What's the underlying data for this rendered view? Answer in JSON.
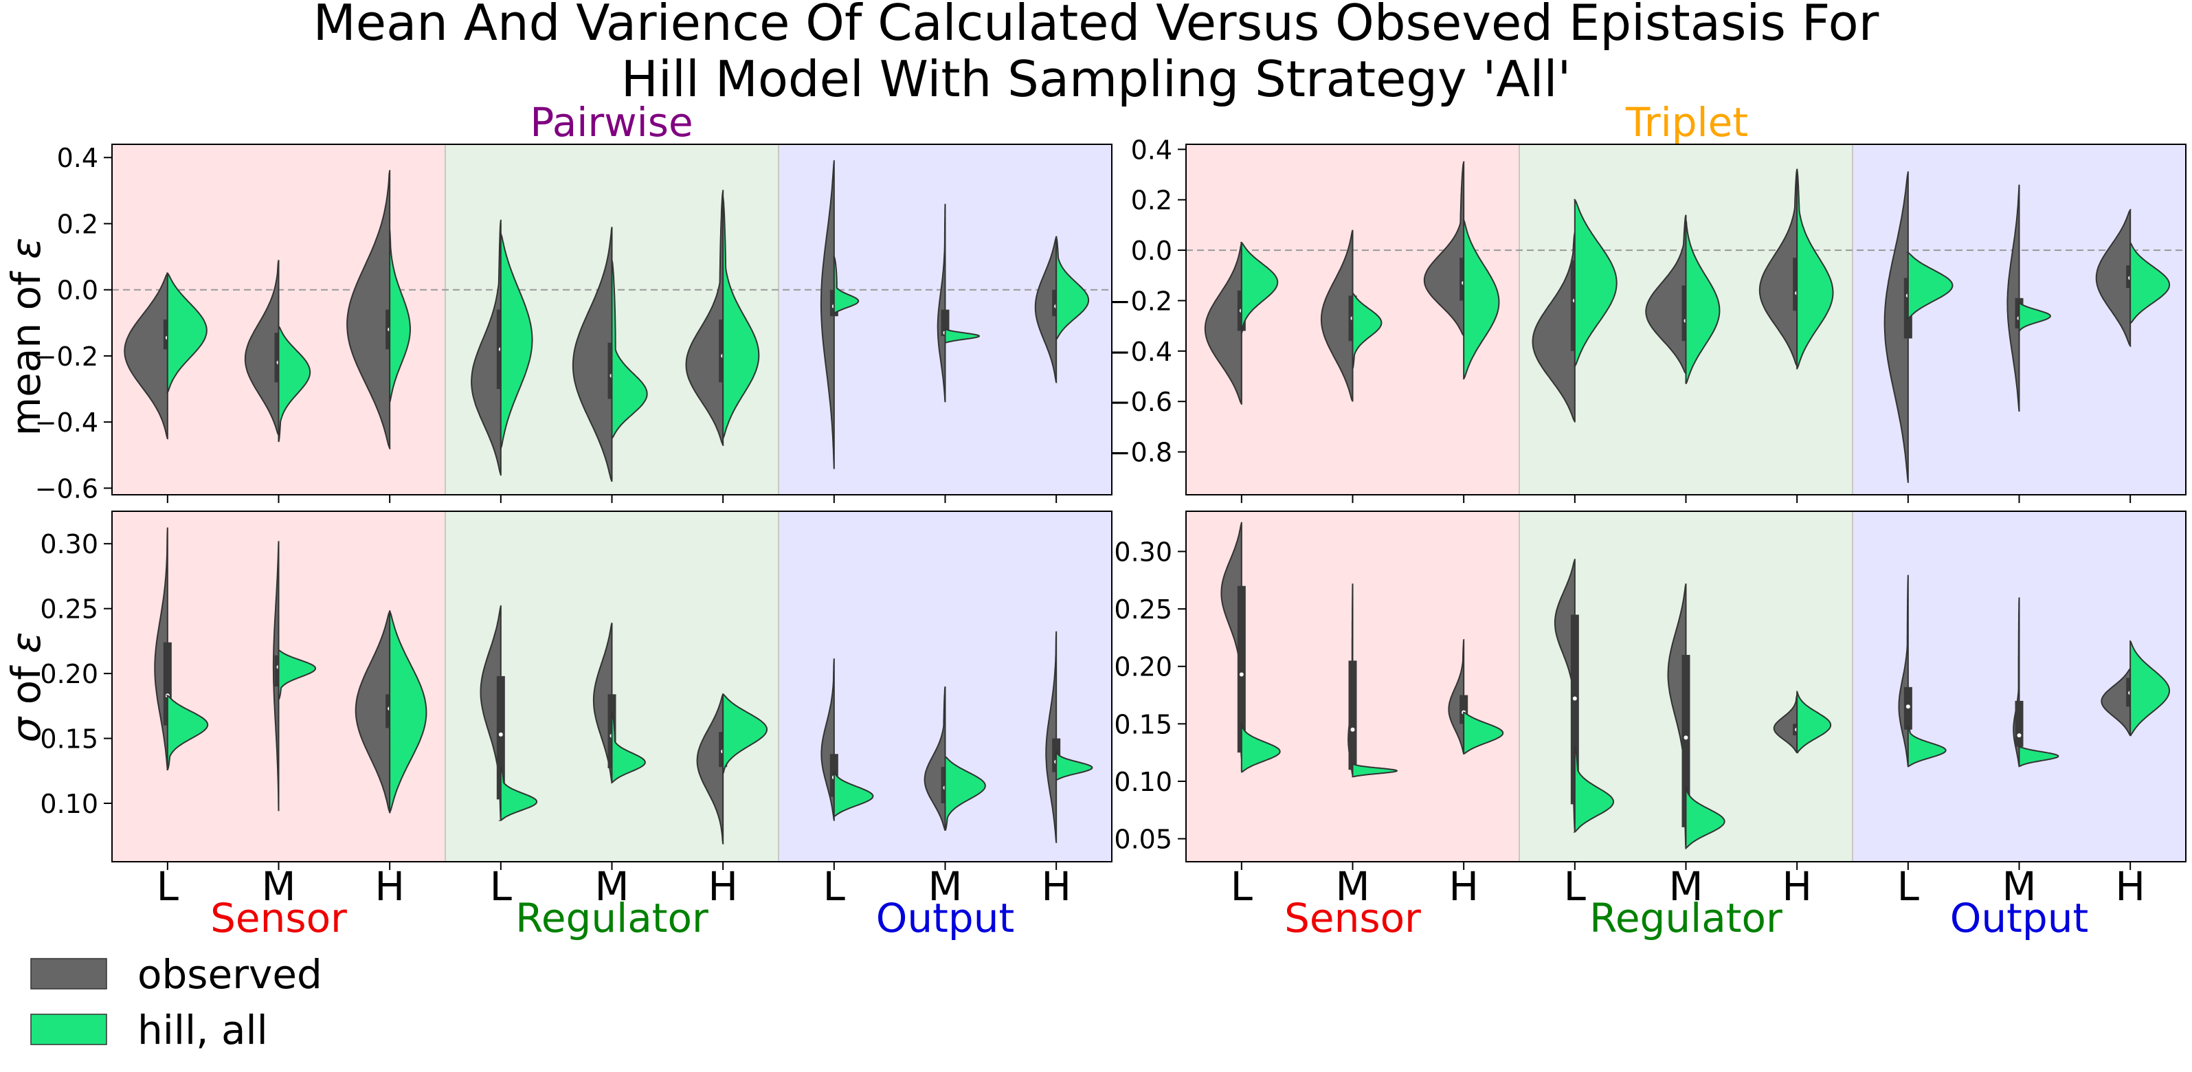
{
  "figure": {
    "title_line1": "Mean And Varience Of Calculated Versus Obseved Epistasis For",
    "title_line2": "Hill Model With Sampling Strategy 'All'"
  },
  "colors": {
    "observed": "#666666",
    "hill_all": "#1de57e",
    "sensor_bg": "#ffe3e5",
    "regulator_bg": "#e5f2e5",
    "output_bg": "#e5e5ff",
    "sensor_text": "#ee0000",
    "regulator_text": "#008000",
    "output_text": "#0000dd",
    "pairwise_text": "#800080",
    "triplet_text": "#ffa500"
  },
  "columns": [
    {
      "title": "Pairwise",
      "color": "#800080"
    },
    {
      "title": "Triplet",
      "color": "#ffa500"
    }
  ],
  "rows": [
    {
      "ylabel_prefix": "mean of ",
      "ylabel_symbol": "ε"
    },
    {
      "ylabel_prefix": "",
      "ylabel_symbol": "σ",
      "ylabel_suffix": " of ",
      "ylabel_symbol2": "ε"
    }
  ],
  "groups": [
    "Sensor",
    "Regulator",
    "Output"
  ],
  "levels": [
    "L",
    "M",
    "H"
  ],
  "legend": [
    {
      "label": "observed",
      "color": "#666666"
    },
    {
      "label": "hill, all",
      "color": "#1de57e"
    }
  ],
  "chart_data": [
    {
      "type": "violin",
      "panel": "pairwise-mean",
      "column": "Pairwise",
      "ylabel": "mean of ε",
      "ylim": [
        -0.62,
        0.44
      ],
      "yticks": [
        -0.6,
        -0.4,
        -0.2,
        0.0,
        0.2,
        0.4
      ],
      "ytick_labels": [
        "−0.6",
        "−0.4",
        "−0.2",
        "0.0",
        "0.2",
        "0.4"
      ],
      "reference_line": 0.0,
      "categories": [
        "Sensor L",
        "Sensor M",
        "Sensor H",
        "Regulator L",
        "Regulator M",
        "Regulator H",
        "Output L",
        "Output M",
        "Output H"
      ],
      "series": [
        {
          "name": "observed",
          "violins": [
            {
              "min": -0.45,
              "max": 0.05,
              "mode": -0.18,
              "q1": -0.18,
              "median": -0.145,
              "q3": -0.09,
              "width": 0.33
            },
            {
              "min": -0.44,
              "max": 0.09,
              "mode": -0.22,
              "q1": -0.28,
              "median": -0.22,
              "q3": -0.13,
              "width": 0.26
            },
            {
              "min": -0.48,
              "max": 0.36,
              "mode": -0.12,
              "q1": -0.18,
              "median": -0.12,
              "q3": -0.06,
              "width": 0.33
            },
            {
              "min": -0.56,
              "max": 0.21,
              "mode": -0.3,
              "q1": -0.3,
              "median": -0.18,
              "q3": -0.06,
              "width": 0.24
            },
            {
              "min": -0.58,
              "max": 0.19,
              "mode": -0.24,
              "q1": -0.33,
              "median": -0.26,
              "q3": -0.16,
              "width": 0.3
            },
            {
              "min": -0.47,
              "max": 0.3,
              "mode": -0.25,
              "q1": -0.28,
              "median": -0.2,
              "q3": -0.09,
              "width": 0.32
            },
            {
              "min": -0.54,
              "max": 0.39,
              "mode": -0.03,
              "q1": -0.08,
              "median": -0.05,
              "q3": 0.0,
              "width": 0.1
            },
            {
              "min": -0.34,
              "max": 0.26,
              "mode": -0.13,
              "q1": -0.14,
              "median": -0.13,
              "q3": -0.06,
              "width": 0.06
            },
            {
              "min": -0.28,
              "max": 0.16,
              "mode": -0.05,
              "q1": -0.08,
              "median": -0.05,
              "q3": 0.0,
              "width": 0.16
            }
          ]
        },
        {
          "name": "hill, all",
          "violins": [
            {
              "min": -0.31,
              "max": 0.05,
              "mode": -0.12,
              "width": 0.3
            },
            {
              "min": -0.46,
              "max": -0.11,
              "mode": -0.24,
              "width": 0.25
            },
            {
              "min": -0.34,
              "max": 0.18,
              "mode": -0.13,
              "width": 0.16
            },
            {
              "min": -0.48,
              "max": 0.17,
              "mode": -0.15,
              "width": 0.24
            },
            {
              "min": -0.45,
              "max": 0.09,
              "mode": -0.33,
              "width": 0.36
            },
            {
              "min": -0.45,
              "max": 0.28,
              "mode": -0.22,
              "width": 0.3
            },
            {
              "min": -0.07,
              "max": 0.1,
              "mode": -0.04,
              "width": 0.26
            },
            {
              "min": -0.16,
              "max": -0.12,
              "mode": -0.14,
              "width": 0.26
            },
            {
              "min": -0.15,
              "max": 0.16,
              "mode": -0.04,
              "width": 0.26
            }
          ]
        }
      ]
    },
    {
      "type": "violin",
      "panel": "triplet-mean",
      "column": "Triplet",
      "ylabel": "",
      "ylim": [
        -0.97,
        0.42
      ],
      "yticks": [
        -0.8,
        -0.6,
        -0.4,
        -0.2,
        0.0,
        0.2,
        0.4
      ],
      "ytick_labels": [
        "−0.8",
        "−0.6",
        "−0.4",
        "−0.2",
        "0.0",
        "0.2",
        "0.4"
      ],
      "reference_line": 0.0,
      "categories": [
        "Sensor L",
        "Sensor M",
        "Sensor H",
        "Regulator L",
        "Regulator M",
        "Regulator H",
        "Output L",
        "Output M",
        "Output H"
      ],
      "series": [
        {
          "name": "observed",
          "violins": [
            {
              "min": -0.61,
              "max": 0.03,
              "mode": -0.32,
              "q1": -0.32,
              "median": -0.24,
              "q3": -0.16,
              "width": 0.28
            },
            {
              "min": -0.6,
              "max": 0.08,
              "mode": -0.28,
              "q1": -0.36,
              "median": -0.27,
              "q3": -0.18,
              "width": 0.24
            },
            {
              "min": -0.34,
              "max": 0.35,
              "mode": -0.14,
              "q1": -0.2,
              "median": -0.13,
              "q3": -0.03,
              "width": 0.34
            },
            {
              "min": -0.68,
              "max": 0.07,
              "mode": -0.38,
              "q1": -0.4,
              "median": -0.2,
              "q3": -0.04,
              "width": 0.33
            },
            {
              "min": -0.49,
              "max": 0.14,
              "mode": -0.26,
              "q1": -0.36,
              "median": -0.28,
              "q3": -0.14,
              "width": 0.32
            },
            {
              "min": -0.46,
              "max": 0.32,
              "mode": -0.18,
              "q1": -0.24,
              "median": -0.17,
              "q3": -0.03,
              "width": 0.3
            },
            {
              "min": -0.92,
              "max": 0.31,
              "mode": -0.28,
              "q1": -0.35,
              "median": -0.18,
              "q3": -0.11,
              "width": 0.18
            },
            {
              "min": -0.64,
              "max": 0.26,
              "mode": -0.22,
              "q1": -0.31,
              "median": -0.27,
              "q3": -0.19,
              "width": 0.09
            },
            {
              "min": -0.38,
              "max": 0.16,
              "mode": -0.11,
              "q1": -0.15,
              "median": -0.11,
              "q3": -0.06,
              "width": 0.26
            }
          ]
        },
        {
          "name": "hill, all",
          "violins": [
            {
              "min": -0.33,
              "max": 0.03,
              "mode": -0.12,
              "width": 0.28
            },
            {
              "min": -0.47,
              "max": -0.17,
              "mode": -0.28,
              "width": 0.23
            },
            {
              "min": -0.51,
              "max": 0.12,
              "mode": -0.21,
              "width": 0.27
            },
            {
              "min": -0.46,
              "max": 0.2,
              "mode": -0.13,
              "width": 0.32
            },
            {
              "min": -0.53,
              "max": 0.12,
              "mode": -0.25,
              "width": 0.26
            },
            {
              "min": -0.47,
              "max": 0.32,
              "mode": -0.19,
              "width": 0.29
            },
            {
              "min": -0.27,
              "max": -0.01,
              "mode": -0.14,
              "width": 0.34
            },
            {
              "min": -0.32,
              "max": -0.21,
              "mode": -0.26,
              "width": 0.24
            },
            {
              "min": -0.29,
              "max": 0.03,
              "mode": -0.14,
              "width": 0.3
            }
          ]
        }
      ]
    },
    {
      "type": "violin",
      "panel": "pairwise-sigma",
      "column": "Pairwise",
      "ylabel": "σ of ε",
      "ylim": [
        0.055,
        0.325
      ],
      "yticks": [
        0.1,
        0.15,
        0.2,
        0.25,
        0.3
      ],
      "ytick_labels": [
        "0.10",
        "0.15",
        "0.20",
        "0.25",
        "0.30"
      ],
      "categories": [
        "Sensor L",
        "Sensor M",
        "Sensor H",
        "Regulator L",
        "Regulator M",
        "Regulator H",
        "Output L",
        "Output M",
        "Output H"
      ],
      "series": [
        {
          "name": "observed",
          "violins": [
            {
              "min": 0.126,
              "max": 0.312,
              "mode": 0.2,
              "q1": 0.16,
              "median": 0.183,
              "q3": 0.224,
              "width": 0.1
            },
            {
              "min": 0.094,
              "max": 0.302,
              "mode": 0.208,
              "q1": 0.19,
              "median": 0.205,
              "q3": 0.214,
              "width": 0.04
            },
            {
              "min": 0.093,
              "max": 0.248,
              "mode": 0.172,
              "q1": 0.158,
              "median": 0.173,
              "q3": 0.184,
              "width": 0.26
            },
            {
              "min": 0.087,
              "max": 0.252,
              "mode": 0.19,
              "q1": 0.103,
              "median": 0.153,
              "q3": 0.198,
              "width": 0.16
            },
            {
              "min": 0.116,
              "max": 0.239,
              "mode": 0.18,
              "q1": 0.127,
              "median": 0.152,
              "q3": 0.184,
              "width": 0.14
            },
            {
              "min": 0.069,
              "max": 0.184,
              "mode": 0.135,
              "q1": 0.128,
              "median": 0.14,
              "q3": 0.155,
              "width": 0.2
            },
            {
              "min": 0.087,
              "max": 0.211,
              "mode": 0.135,
              "q1": 0.105,
              "median": 0.12,
              "q3": 0.138,
              "width": 0.1
            },
            {
              "min": 0.079,
              "max": 0.19,
              "mode": 0.115,
              "q1": 0.1,
              "median": 0.112,
              "q3": 0.128,
              "width": 0.17
            },
            {
              "min": 0.07,
              "max": 0.232,
              "mode": 0.135,
              "q1": 0.124,
              "median": 0.132,
              "q3": 0.15,
              "width": 0.08
            }
          ]
        },
        {
          "name": "hill, all",
          "violins": [
            {
              "min": 0.126,
              "max": 0.183,
              "mode": 0.162,
              "width": 0.32
            },
            {
              "min": 0.18,
              "max": 0.218,
              "mode": 0.205,
              "width": 0.3
            },
            {
              "min": 0.093,
              "max": 0.248,
              "mode": 0.17,
              "width": 0.28
            },
            {
              "min": 0.087,
              "max": 0.128,
              "mode": 0.1,
              "width": 0.3
            },
            {
              "min": 0.116,
              "max": 0.17,
              "mode": 0.13,
              "width": 0.3
            },
            {
              "min": 0.123,
              "max": 0.184,
              "mode": 0.158,
              "width": 0.34
            },
            {
              "min": 0.09,
              "max": 0.124,
              "mode": 0.105,
              "width": 0.3
            },
            {
              "min": 0.079,
              "max": 0.136,
              "mode": 0.115,
              "width": 0.32
            },
            {
              "min": 0.118,
              "max": 0.14,
              "mode": 0.127,
              "width": 0.28
            }
          ]
        }
      ]
    },
    {
      "type": "violin",
      "panel": "triplet-sigma",
      "column": "Triplet",
      "ylabel": "",
      "ylim": [
        0.03,
        0.335
      ],
      "yticks": [
        0.05,
        0.1,
        0.15,
        0.2,
        0.25,
        0.3
      ],
      "ytick_labels": [
        "0.05",
        "0.10",
        "0.15",
        "0.20",
        "0.25",
        "0.30"
      ],
      "categories": [
        "Sensor L",
        "Sensor M",
        "Sensor H",
        "Regulator L",
        "Regulator M",
        "Regulator H",
        "Output L",
        "Output M",
        "Output H"
      ],
      "series": [
        {
          "name": "observed",
          "violins": [
            {
              "min": 0.12,
              "max": 0.325,
              "mode": 0.27,
              "q1": 0.125,
              "median": 0.193,
              "q3": 0.27,
              "width": 0.18
            },
            {
              "min": 0.105,
              "max": 0.272,
              "mode": 0.13,
              "q1": 0.11,
              "median": 0.145,
              "q3": 0.205,
              "width": 0.05
            },
            {
              "min": 0.124,
              "max": 0.223,
              "mode": 0.16,
              "q1": 0.15,
              "median": 0.16,
              "q3": 0.175,
              "width": 0.12
            },
            {
              "min": 0.057,
              "max": 0.293,
              "mode": 0.245,
              "q1": 0.08,
              "median": 0.172,
              "q3": 0.245,
              "width": 0.2
            },
            {
              "min": 0.041,
              "max": 0.272,
              "mode": 0.2,
              "q1": 0.06,
              "median": 0.138,
              "q3": 0.21,
              "width": 0.15
            },
            {
              "min": 0.125,
              "max": 0.175,
              "mode": 0.145,
              "q1": 0.14,
              "median": 0.145,
              "q3": 0.15,
              "width": 0.18
            },
            {
              "min": 0.113,
              "max": 0.279,
              "mode": 0.16,
              "q1": 0.145,
              "median": 0.165,
              "q3": 0.182,
              "width": 0.08
            },
            {
              "min": 0.113,
              "max": 0.26,
              "mode": 0.14,
              "q1": 0.13,
              "median": 0.14,
              "q3": 0.17,
              "width": 0.06
            },
            {
              "min": 0.14,
              "max": 0.198,
              "mode": 0.17,
              "q1": 0.165,
              "median": 0.177,
              "q3": 0.19,
              "width": 0.22
            }
          ]
        },
        {
          "name": "hill, all",
          "violins": [
            {
              "min": 0.108,
              "max": 0.15,
              "mode": 0.125,
              "width": 0.3
            },
            {
              "min": 0.104,
              "max": 0.115,
              "mode": 0.109,
              "width": 0.34
            },
            {
              "min": 0.124,
              "max": 0.16,
              "mode": 0.142,
              "width": 0.3
            },
            {
              "min": 0.056,
              "max": 0.13,
              "mode": 0.08,
              "width": 0.32
            },
            {
              "min": 0.042,
              "max": 0.095,
              "mode": 0.064,
              "width": 0.3
            },
            {
              "min": 0.125,
              "max": 0.178,
              "mode": 0.148,
              "width": 0.26
            },
            {
              "min": 0.113,
              "max": 0.148,
              "mode": 0.126,
              "width": 0.3
            },
            {
              "min": 0.113,
              "max": 0.13,
              "mode": 0.122,
              "width": 0.3
            },
            {
              "min": 0.14,
              "max": 0.222,
              "mode": 0.178,
              "width": 0.3
            }
          ]
        }
      ]
    }
  ]
}
